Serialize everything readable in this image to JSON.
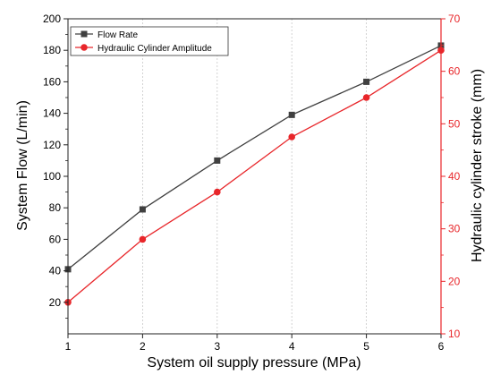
{
  "chart_data": {
    "type": "line",
    "x": [
      1,
      2,
      3,
      4,
      5,
      6
    ],
    "xlabel": "System oil supply pressure (MPa)",
    "xlim": [
      1,
      6
    ],
    "xticks": [
      "1",
      "2",
      "3",
      "4",
      "5",
      "6"
    ],
    "ylabel_left": "System Flow (L/min)",
    "ylim_left": [
      0,
      200
    ],
    "yticks_left": [
      "20",
      "40",
      "60",
      "80",
      "100",
      "120",
      "140",
      "160",
      "180",
      "200"
    ],
    "ylabel_right": "Hydraulic cylinder stroke (mm)",
    "ylim_right": [
      10,
      70
    ],
    "yticks_right": [
      "10",
      "20",
      "30",
      "40",
      "50",
      "60",
      "70"
    ],
    "grid": "vertical dotted",
    "legend_position": "top-left",
    "series": [
      {
        "name": "Flow Rate",
        "axis": "left",
        "color": "#404040",
        "marker": "square",
        "values": [
          41,
          79,
          110,
          139,
          160,
          183
        ]
      },
      {
        "name": "Hydraulic Cylinder Amplitude",
        "axis": "right",
        "color": "#e8262a",
        "marker": "circle",
        "values": [
          16,
          28,
          37,
          47.5,
          55,
          64
        ]
      }
    ]
  }
}
